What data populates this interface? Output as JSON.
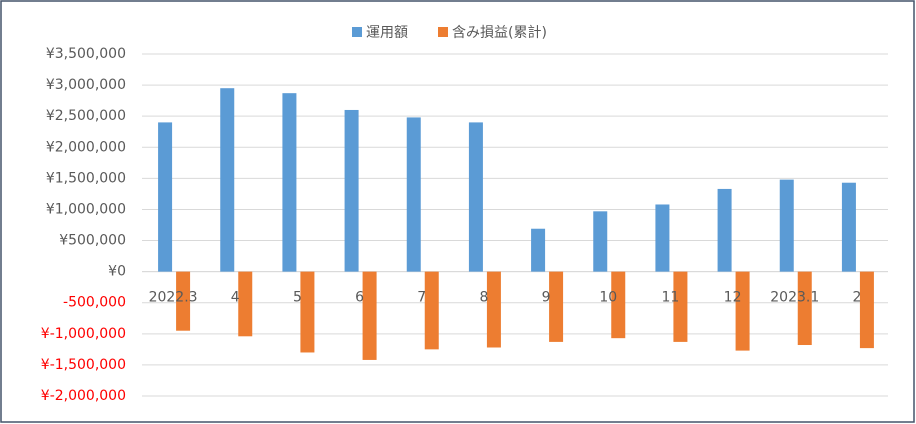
{
  "chart_data": {
    "type": "bar",
    "categories": [
      "2022.3",
      "4",
      "5",
      "6",
      "7",
      "8",
      "9",
      "10",
      "11",
      "12",
      "2023.1",
      "2"
    ],
    "series": [
      {
        "name": "運用額",
        "color": "#5b9bd5",
        "values": [
          2400000,
          2950000,
          2870000,
          2600000,
          2480000,
          2400000,
          690000,
          970000,
          1080000,
          1330000,
          1480000,
          1430000
        ]
      },
      {
        "name": "含み損益(累計)",
        "color": "#ed7d31",
        "values": [
          -950000,
          -1040000,
          -1300000,
          -1420000,
          -1250000,
          -1220000,
          -1130000,
          -1070000,
          -1130000,
          -1270000,
          -1180000,
          -1230000
        ]
      }
    ],
    "ylim": [
      -2000000,
      3500000
    ],
    "yticks": [
      {
        "value": -2000000,
        "label": "¥-2,000,000"
      },
      {
        "value": -1500000,
        "label": "¥-1,500,000"
      },
      {
        "value": -1000000,
        "label": "¥-1,000,000"
      },
      {
        "value": -500000,
        "label": "-500,000"
      },
      {
        "value": 0,
        "label": "¥0"
      },
      {
        "value": 500000,
        "label": "¥500,000"
      },
      {
        "value": 1000000,
        "label": "¥1,000,000"
      },
      {
        "value": 1500000,
        "label": "¥1,500,000"
      },
      {
        "value": 2000000,
        "label": "¥2,000,000"
      },
      {
        "value": 2500000,
        "label": "¥2,500,000"
      },
      {
        "value": 3000000,
        "label": "¥3,000,000"
      },
      {
        "value": 3500000,
        "label": "¥3,500,000"
      }
    ],
    "grid": true,
    "legend": "top",
    "negative_tick_color": "#ff0000"
  }
}
